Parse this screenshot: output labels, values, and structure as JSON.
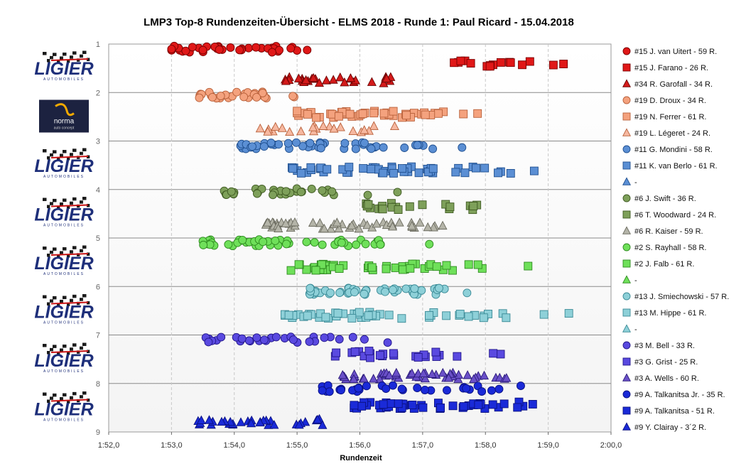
{
  "chart_data": {
    "type": "scatter",
    "title": "LMP3  Top-8  Rundenzeiten-Übersicht   - ELMS  2018   - Runde  1: Paul  Ricard   - 15.04.2018",
    "xlabel": "Rundenzeit",
    "ylabel": "",
    "x_range_seconds": [
      112,
      120
    ],
    "x_ticks": [
      "1:52,0",
      "1:53,0",
      "1:54,0",
      "1:55,0",
      "1:56,0",
      "1:57,0",
      "1:58,0",
      "1:59,0",
      "2:00,0"
    ],
    "y_ticks": [
      "1",
      "2",
      "3",
      "4",
      "5",
      "6",
      "7",
      "8",
      "9"
    ],
    "ylim": [
      1,
      9
    ],
    "grid": true,
    "legend_position": "right",
    "logos": [
      {
        "type": "ligier",
        "text": "LIGIER",
        "sub": "AUTOMOBILES"
      },
      {
        "type": "norma",
        "text": "norma",
        "sub": "auto concept"
      },
      {
        "type": "ligier",
        "text": "LIGIER",
        "sub": "AUTOMOBILES"
      },
      {
        "type": "ligier",
        "text": "LIGIER",
        "sub": "AUTOMOBILES"
      },
      {
        "type": "ligier",
        "text": "LIGIER",
        "sub": "AUTOMOBILES"
      },
      {
        "type": "ligier",
        "text": "LIGIER",
        "sub": "AUTOMOBILES"
      },
      {
        "type": "ligier",
        "text": "LIGIER",
        "sub": "AUTOMOBILES"
      },
      {
        "type": "ligier",
        "text": "LIGIER",
        "sub": "AUTOMOBILES"
      }
    ],
    "series": [
      {
        "name": "#15 J. van Uitert - 59 R.",
        "marker": "circle",
        "color": "#e01818",
        "stroke": "#7a0000",
        "y": 1.1,
        "range": [
          113.0,
          115.9
        ],
        "n": 40
      },
      {
        "name": "#15 J. Farano - 26 R.",
        "marker": "square",
        "color": "#e01818",
        "stroke": "#7a0000",
        "y": 1.4,
        "range": [
          117.5,
          119.7
        ],
        "n": 16
      },
      {
        "name": "#34 R. Garofall - 34 R.",
        "marker": "triangle",
        "color": "#d41a1a",
        "stroke": "#6a0000",
        "y": 1.75,
        "range": [
          114.8,
          117.3
        ],
        "n": 30
      },
      {
        "name": "#19 D. Droux - 34 R.",
        "marker": "circle",
        "color": "#f4a27e",
        "stroke": "#b8603a",
        "y": 2.05,
        "range": [
          113.4,
          115.5
        ],
        "n": 30
      },
      {
        "name": "#19 N. Ferrer - 61 R.",
        "marker": "square",
        "color": "#f4a27e",
        "stroke": "#b8603a",
        "y": 2.45,
        "range": [
          115.0,
          118.3
        ],
        "n": 48
      },
      {
        "name": "#19 L. Légeret - 24 R.",
        "marker": "triangle",
        "color": "#f6b8a0",
        "stroke": "#b8603a",
        "y": 2.75,
        "range": [
          114.3,
          116.8
        ],
        "n": 22
      },
      {
        "name": "#11 G. Mondini - 58 R.",
        "marker": "circle",
        "color": "#5b8fd4",
        "stroke": "#1f4f8f",
        "y": 3.1,
        "range": [
          114.1,
          118.1
        ],
        "n": 48
      },
      {
        "name": "#11 K. van Berlo - 61 R.",
        "marker": "square",
        "color": "#5b8fd4",
        "stroke": "#1f4f8f",
        "y": 3.6,
        "range": [
          114.9,
          119.6
        ],
        "n": 50
      },
      {
        "name": "-",
        "marker": "triangle",
        "color": "#5b8fd4",
        "stroke": "#1f4f8f",
        "y": null,
        "range": [
          0,
          0
        ],
        "n": 0
      },
      {
        "name": "#6 J. Swift - 36 R.",
        "marker": "circle",
        "color": "#7ea05a",
        "stroke": "#3f5a22",
        "y": 4.05,
        "range": [
          113.8,
          117.0
        ],
        "n": 34
      },
      {
        "name": "#6 T. Woodward - 24 R.",
        "marker": "square",
        "color": "#7ea05a",
        "stroke": "#3f5a22",
        "y": 4.35,
        "range": [
          116.1,
          118.6
        ],
        "n": 22
      },
      {
        "name": "#6 R. Kaiser - 59 R.",
        "marker": "triangle",
        "color": "#b4b4a8",
        "stroke": "#6a6a5e",
        "y": 4.75,
        "range": [
          114.5,
          118.4
        ],
        "n": 50
      },
      {
        "name": "#2 S. Rayhall - 58 R.",
        "marker": "circle",
        "color": "#6fe05a",
        "stroke": "#2e8a1f",
        "y": 5.1,
        "range": [
          113.5,
          117.3
        ],
        "n": 50
      },
      {
        "name": "#2 J. Falb - 61 R.",
        "marker": "square",
        "color": "#6fe05a",
        "stroke": "#2e8a1f",
        "y": 5.6,
        "range": [
          114.9,
          119.0
        ],
        "n": 50
      },
      {
        "name": "-",
        "marker": "triangle",
        "color": "#6fe05a",
        "stroke": "#2e8a1f",
        "y": null,
        "range": [
          0,
          0
        ],
        "n": 0
      },
      {
        "name": "#13 J. Smiechowski - 57 R.",
        "marker": "circle",
        "color": "#8ed0d8",
        "stroke": "#3a8a96",
        "y": 6.1,
        "range": [
          115.2,
          118.2
        ],
        "n": 50
      },
      {
        "name": "#13 M. Hippe - 61 R.",
        "marker": "square",
        "color": "#8ed0d8",
        "stroke": "#3a8a96",
        "y": 6.6,
        "range": [
          114.8,
          120.0
        ],
        "n": 50
      },
      {
        "name": "-",
        "marker": "triangle",
        "color": "#8ed0d8",
        "stroke": "#3a8a96",
        "y": null,
        "range": [
          0,
          0
        ],
        "n": 0
      },
      {
        "name": "#3 M. Bell - 33 R.",
        "marker": "circle",
        "color": "#5a4ae0",
        "stroke": "#22168a",
        "y": 7.1,
        "range": [
          113.5,
          117.0
        ],
        "n": 30
      },
      {
        "name": "#3 G. Grist - 25 R.",
        "marker": "square",
        "color": "#5a4ae0",
        "stroke": "#22168a",
        "y": 7.4,
        "range": [
          115.6,
          118.9
        ],
        "n": 24
      },
      {
        "name": "#3 A. Wells - 60 R.",
        "marker": "triangle",
        "color": "#6a50c8",
        "stroke": "#2a1a7a",
        "y": 7.85,
        "range": [
          115.7,
          119.1
        ],
        "n": 50
      },
      {
        "name": "#9 A. Talkanitsa Jr. - 35 R.",
        "marker": "circle",
        "color": "#1a2ad8",
        "stroke": "#0a1080",
        "y": 8.1,
        "range": [
          115.4,
          119.2
        ],
        "n": 34
      },
      {
        "name": "#9 A. Talkanitsa - 51 R.",
        "marker": "square",
        "color": "#1a2ad8",
        "stroke": "#0a1080",
        "y": 8.45,
        "range": [
          115.9,
          119.0
        ],
        "n": 48
      },
      {
        "name": "#9 Y. Clairay - 3´2 R.",
        "marker": "triangle",
        "color": "#1a2ad8",
        "stroke": "#0a1080",
        "y": 8.8,
        "range": [
          113.4,
          116.1
        ],
        "n": 32
      }
    ]
  }
}
